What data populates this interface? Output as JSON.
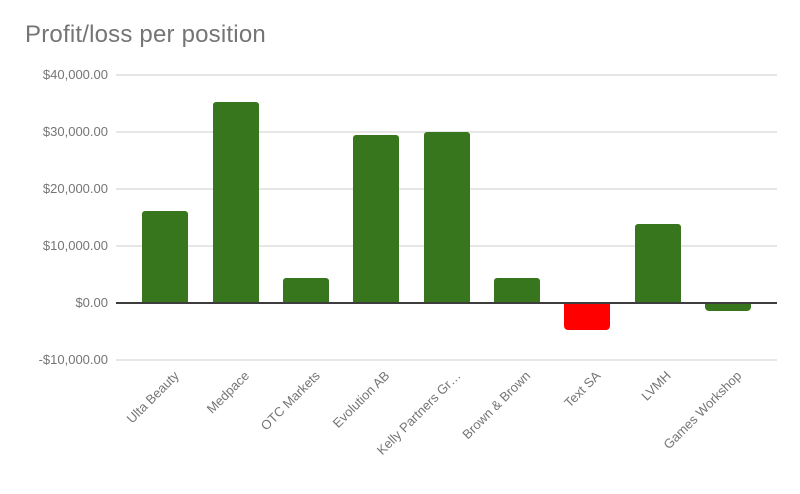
{
  "chart_data": {
    "type": "bar",
    "title": "Profit/loss per position",
    "xlabel": "",
    "ylabel": "",
    "categories": [
      "Ulta Beauty",
      "Medpace",
      "OTC Markets",
      "Evolution AB",
      "Kelly Partners Gr…",
      "Brown & Brown",
      "Text SA",
      "LVMH",
      "Games Workshop"
    ],
    "values": [
      16200,
      35300,
      4400,
      29500,
      30000,
      4400,
      -4700,
      13800,
      -1400
    ],
    "bar_colors": [
      "#38761d",
      "#38761d",
      "#38761d",
      "#38761d",
      "#38761d",
      "#38761d",
      "#ff0000",
      "#38761d",
      "#38761d"
    ],
    "y_tick_labels": [
      "$40,000.00",
      "$30,000.00",
      "$20,000.00",
      "$10,000.00",
      "$0.00",
      "-$10,000.00"
    ],
    "y_tick_values": [
      40000,
      30000,
      20000,
      10000,
      0,
      -10000
    ],
    "ylim": [
      -10000,
      40000
    ],
    "grid": true,
    "legend_position": "none",
    "colors": {
      "positive_bar": "#38761d",
      "loss_highlight_bar": "#ff0000",
      "title_text": "#757575",
      "axis_text": "#757575",
      "gridline": "#e6e6e6",
      "zero_axis_line": "#3d3d3d"
    }
  }
}
